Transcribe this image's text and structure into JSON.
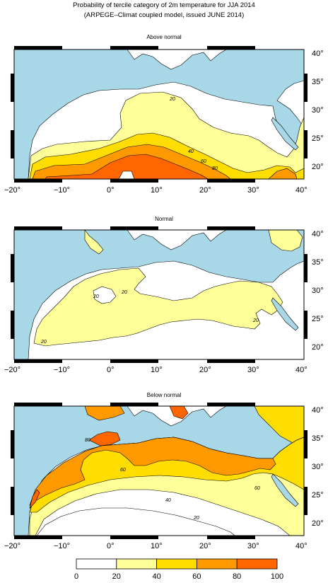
{
  "header": {
    "title_line1": "Probability of tercile category of 2m temperature for JJA 2014",
    "title_line2": "(ARPEGE–Climat coupled model, issued JUNE 2014)"
  },
  "axes": {
    "x_ticks": [
      "−20°",
      "−10°",
      "0°",
      "10°",
      "20°",
      "30°",
      "40°"
    ],
    "y_ticks": [
      "40°",
      "35°",
      "30°",
      "25°",
      "20°"
    ],
    "lon_range": [
      -20,
      40
    ],
    "lat_range": [
      18,
      41
    ]
  },
  "colors": {
    "sea": "#a8d8e8",
    "land_0_20": "#ffffff",
    "land_20_40": "#ffff99",
    "land_40_60": "#ffdd00",
    "land_60_80": "#ff9900",
    "land_80_100": "#ff6600"
  },
  "panels": [
    {
      "id": "above",
      "title": "Above normal",
      "contour_labels": [
        "20",
        "40",
        "60",
        "80"
      ]
    },
    {
      "id": "normal",
      "title": "Normal",
      "contour_labels": [
        "20",
        "20",
        "20",
        "20"
      ]
    },
    {
      "id": "below",
      "title": "Below normal",
      "contour_labels": [
        "80",
        "60",
        "60",
        "40",
        "20"
      ]
    }
  ],
  "legend": {
    "bins": [
      0,
      20,
      40,
      60,
      80,
      100
    ],
    "labels": [
      "0",
      "20",
      "40",
      "60",
      "80",
      "100"
    ]
  }
}
